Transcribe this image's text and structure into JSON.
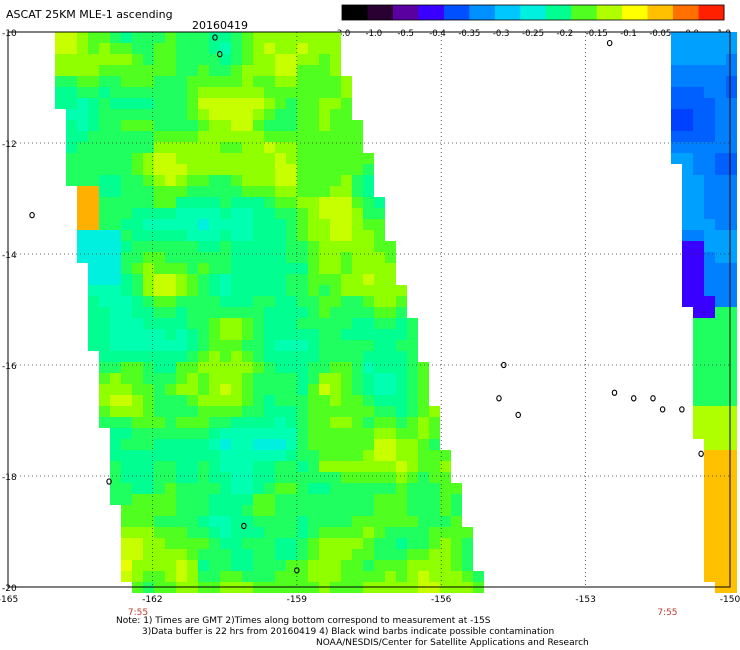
{
  "header": {
    "title": "ASCAT 25KM MLE-1 ascending",
    "date": "20160419"
  },
  "colorbar": {
    "labels": [
      "-3.0",
      "-1.0",
      "-0.5",
      "-0.4",
      "-0.35",
      "-0.3",
      "-0.25",
      "-0.2",
      "-0.15",
      "-0.1",
      "-0.05",
      "0.0",
      "1.0"
    ],
    "colors": [
      "#000000",
      "#2a0033",
      "#5a00a0",
      "#3a00ff",
      "#0050ff",
      "#0090ff",
      "#00c8ff",
      "#00f0e0",
      "#00ff90",
      "#50ff20",
      "#b0ff00",
      "#ffff00",
      "#ffc000",
      "#ff7000",
      "#ff2000"
    ]
  },
  "axes": {
    "x_ticks": [
      "-165",
      "-162",
      "-159",
      "-156",
      "-153",
      "-150"
    ],
    "y_ticks": [
      "-10",
      "-12",
      "-14",
      "-16",
      "-18",
      "-20"
    ],
    "x_range": [
      -165,
      -150
    ],
    "y_range": [
      -20,
      -10
    ]
  },
  "times": [
    "7:55",
    "7:55"
  ],
  "notes": {
    "line1": "Note: 1) Times are GMT 2)Times along bottom correspond to measurement at -15S",
    "line2": "3)Data buffer is 22 hrs from 20160419 4) Black wind barbs indicate possible contamination",
    "line3": "NOAA/NESDIS/Center for Satellite Applications and Research"
  },
  "map_data": {
    "swaths": [
      {
        "name": "left-swath",
        "lon_left_top": -164.0,
        "lon_right_top": -158.3,
        "lon_left_bottom": -162.4,
        "lon_right_bottom": -155.2,
        "dominant": "green/cyan"
      },
      {
        "name": "right-swath",
        "lon_left_top": -151.2,
        "lon_right_top": -150.0,
        "lon_left_bottom": -150.3,
        "lon_right_bottom": -150.0,
        "dominant": "blue"
      }
    ],
    "islands": [
      {
        "lon": -160.7,
        "lat": -10.1
      },
      {
        "lon": -160.6,
        "lat": -10.4
      },
      {
        "lon": -164.5,
        "lat": -13.3
      },
      {
        "lon": -162.9,
        "lat": -18.1
      },
      {
        "lon": -160.1,
        "lat": -18.9
      },
      {
        "lon": -159.0,
        "lat": -19.7
      },
      {
        "lon": -154.7,
        "lat": -16.0
      },
      {
        "lon": -154.8,
        "lat": -16.6
      },
      {
        "lon": -154.4,
        "lat": -16.9
      },
      {
        "lon": -152.4,
        "lat": -16.5
      },
      {
        "lon": -152.0,
        "lat": -16.6
      },
      {
        "lon": -151.6,
        "lat": -16.6
      },
      {
        "lon": -151.4,
        "lat": -16.8
      },
      {
        "lon": -151.0,
        "lat": -16.8
      },
      {
        "lon": -150.6,
        "lat": -17.6
      },
      {
        "lon": -152.5,
        "lat": -10.2
      }
    ]
  }
}
